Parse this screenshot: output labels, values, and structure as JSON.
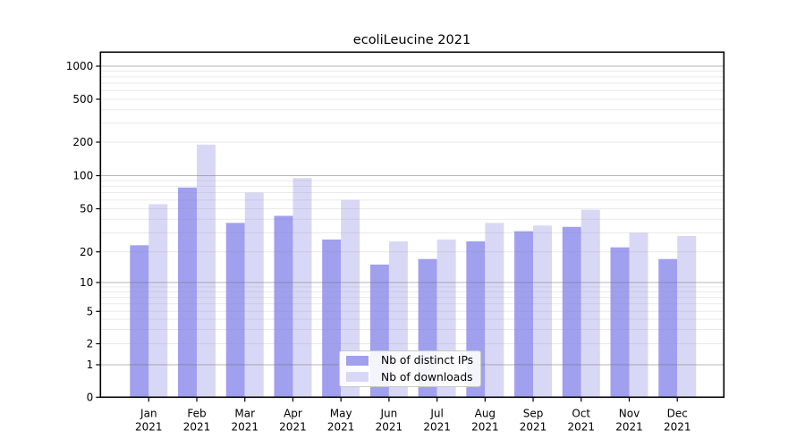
{
  "chart_data": {
    "type": "bar",
    "title": "ecoliLeucine 2021",
    "categories": [
      "Jan",
      "Feb",
      "Mar",
      "Apr",
      "May",
      "Jun",
      "Jul",
      "Aug",
      "Sep",
      "Oct",
      "Nov",
      "Dec"
    ],
    "x_year_label": "2021",
    "y_axis": {
      "scale": "symlog",
      "ticks": [
        0,
        1,
        2,
        5,
        10,
        20,
        50,
        100,
        200,
        500,
        1000
      ],
      "ylim": [
        0,
        1400
      ],
      "grid": "major-and-minor"
    },
    "series": [
      {
        "name": "Nb of distinct IPs",
        "color": "#a0a0ef",
        "values": [
          23,
          78,
          37,
          43,
          26,
          15,
          17,
          25,
          31,
          34,
          22,
          17
        ]
      },
      {
        "name": "Nb of downloads",
        "color": "#d8d8f6",
        "values": [
          55,
          190,
          70,
          95,
          60,
          25,
          26,
          37,
          35,
          49,
          30,
          28
        ]
      }
    ],
    "legend": {
      "position": "lower center",
      "entries": [
        "Nb of distinct IPs",
        "Nb of downloads"
      ]
    }
  },
  "colors": {
    "grid_major": "#6e6e6e",
    "grid_minor": "#8a8a8a",
    "axis": "#000000",
    "text": "#000000",
    "legend_border": "#c9c9c9",
    "background": "#ffffff"
  }
}
